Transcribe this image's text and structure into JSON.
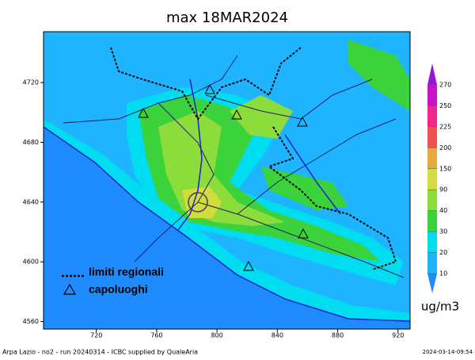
{
  "title": "max 18MAR2024",
  "map": {
    "xlim": [
      685,
      928
    ],
    "ylim": [
      4555,
      4754
    ],
    "xticks": [
      720,
      760,
      800,
      840,
      880,
      920
    ],
    "yticks": [
      4560,
      4600,
      4640,
      4680,
      4720
    ]
  },
  "colorbar": {
    "levels": [
      10,
      20,
      30,
      40,
      90,
      150,
      200,
      225,
      250,
      270
    ],
    "colors": [
      "#1e8cff",
      "#1eb4ff",
      "#00dcf0",
      "#3cd23c",
      "#8cdc3c",
      "#d2dc3c",
      "#e6aa3c",
      "#f05050",
      "#f0288c",
      "#c814c8",
      "#9614dc"
    ],
    "unit": "ug/m3"
  },
  "legend": [
    "limiti regionali",
    "capoluoghi"
  ],
  "footer": {
    "left": "Arpa Lazio - no2 - run 20240314 - ICBC supplied by QualeAria",
    "right": "2024-03-14-09:54"
  }
}
